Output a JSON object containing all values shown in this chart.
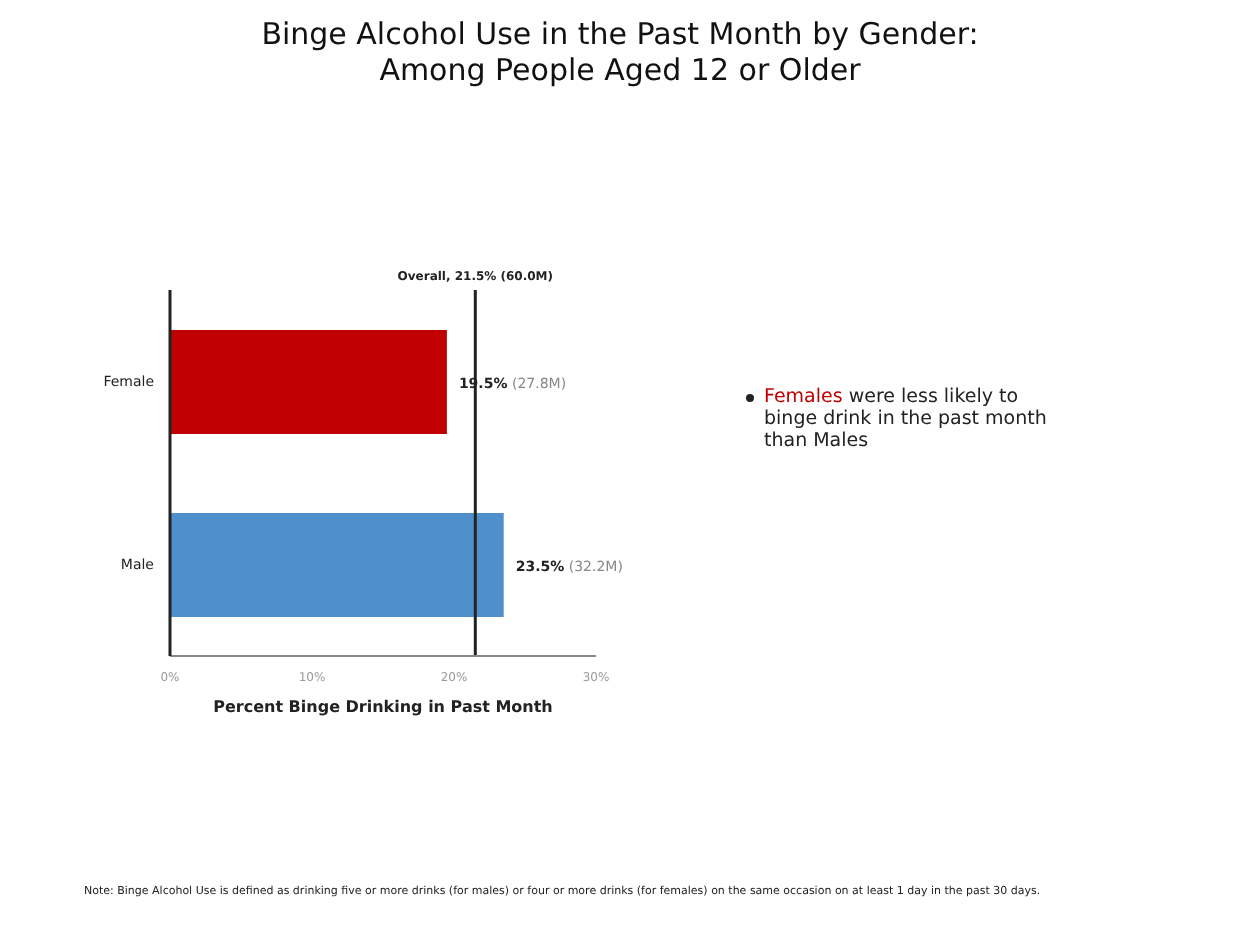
{
  "chart_data": {
    "type": "bar",
    "orientation": "horizontal",
    "title": "Binge Alcohol Use in the Past Month by Gender:\nAmong People Aged 12 or Older",
    "xlabel": "Percent Binge Drinking in Past Month",
    "categories": [
      "Female",
      "Male"
    ],
    "values": [
      19.5,
      23.5
    ],
    "colors": [
      "#c00000",
      "#4e8fcc"
    ],
    "value_labels": [
      "19.5% (27.8M)",
      "23.5% (32.2M)"
    ],
    "xlim": [
      0,
      30
    ],
    "xticks": [
      {
        "value": 0,
        "label": "0%"
      },
      {
        "value": 10,
        "label": "10%"
      },
      {
        "value": 20,
        "label": "20%"
      },
      {
        "value": 30,
        "label": "30%"
      }
    ],
    "ref_lines": [
      {
        "axis": "x",
        "value": 21.5,
        "label": "Overall, 21.5% (60.0M)",
        "color": "#222222"
      }
    ],
    "grid": false,
    "legend": false,
    "annotations": [
      "Females were less likely to binge drink in the past month than Males",
      "Note: Binge Alcohol Use is defined as drinking five or more drinks (for males) or four or more drinks (for females) on the same occasion on at least 1 day in the past 30 days."
    ]
  }
}
